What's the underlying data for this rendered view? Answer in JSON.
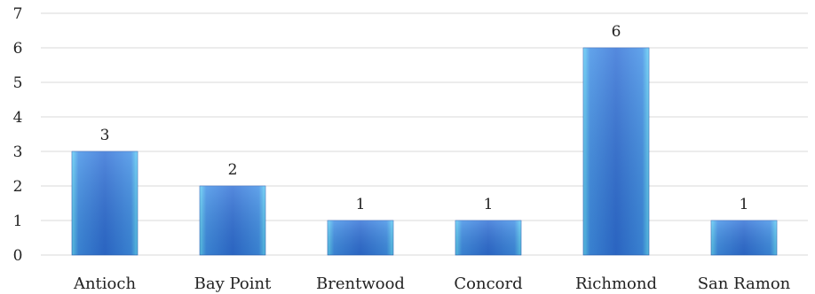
{
  "chart_data": {
    "type": "bar",
    "categories": [
      "Antioch",
      "Bay Point",
      "Brentwood",
      "Concord",
      "Richmond",
      "San Ramon"
    ],
    "values": [
      3,
      2,
      1,
      1,
      6,
      1
    ],
    "ylim": [
      0,
      7
    ],
    "yticks": [
      0,
      1,
      2,
      3,
      4,
      5,
      6,
      7
    ],
    "grid": true,
    "legend": "none",
    "data_labels": true,
    "bar_color": "#2f6fd6",
    "bar_highlight_color": "#5fd0f5",
    "grid_color": "#d9d9d9"
  }
}
